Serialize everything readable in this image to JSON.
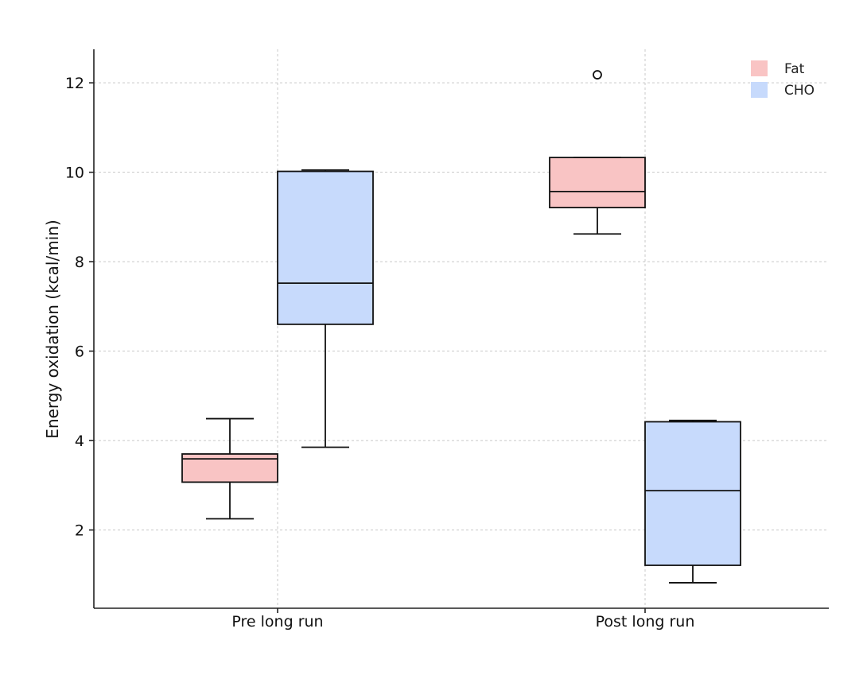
{
  "chart_data": {
    "type": "box",
    "title": "",
    "xlabel": "",
    "ylabel": "Energy oxidation (kcal/min)",
    "categories": [
      "Pre long run",
      "Post long run"
    ],
    "ylim": [
      0.25,
      12.75
    ],
    "yticks": [
      2,
      4,
      6,
      8,
      10,
      12
    ],
    "grid": true,
    "legend": {
      "placement": "top-right"
    },
    "series": [
      {
        "name": "Fat",
        "color": "#f9c4c4",
        "boxes": [
          {
            "category": "Pre long run",
            "whisker_low": 2.25,
            "q1": 3.07,
            "median": 3.59,
            "q3": 3.7,
            "whisker_high": 4.49,
            "outliers": []
          },
          {
            "category": "Post long run",
            "whisker_low": 8.62,
            "q1": 9.21,
            "median": 9.57,
            "q3": 10.33,
            "whisker_high": 10.33,
            "outliers": [
              12.18
            ]
          }
        ]
      },
      {
        "name": "CHO",
        "color": "#c7dafc",
        "boxes": [
          {
            "category": "Pre long run",
            "whisker_low": 3.85,
            "q1": 6.6,
            "median": 7.52,
            "q3": 10.02,
            "whisker_high": 10.05,
            "outliers": []
          },
          {
            "category": "Post long run",
            "whisker_low": 0.82,
            "q1": 1.21,
            "median": 2.88,
            "q3": 4.42,
            "whisker_high": 4.45,
            "outliers": []
          }
        ]
      }
    ]
  }
}
